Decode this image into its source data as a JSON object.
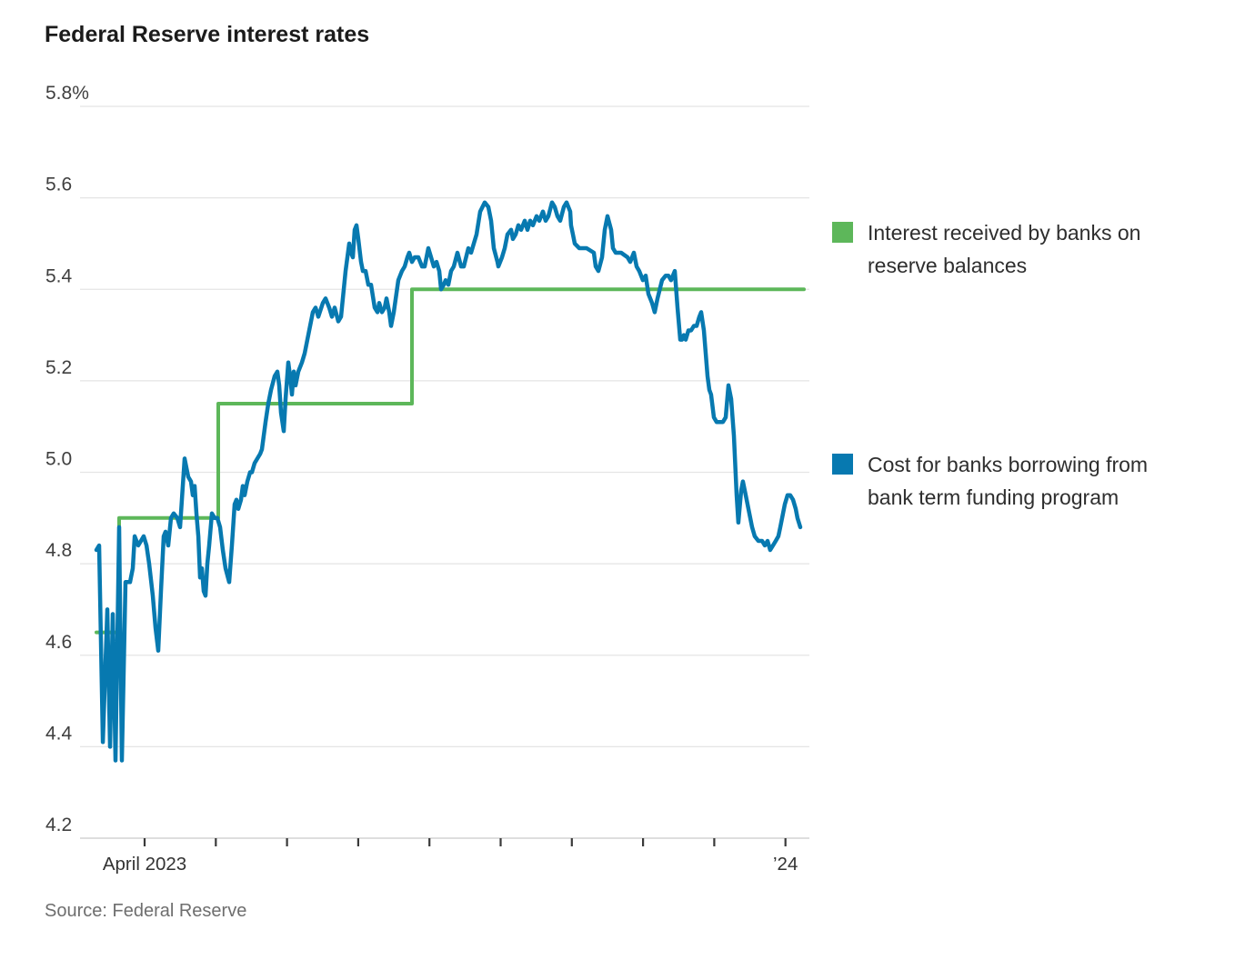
{
  "page": {
    "title": "Federal Reserve interest rates",
    "source": "Source: Federal Reserve"
  },
  "legend": {
    "items": [
      {
        "label": "Interest received by banks on reserve balances",
        "color": "#5db75a"
      },
      {
        "label": "Cost for banks borrowing from bank term funding program",
        "color": "#0779b0"
      }
    ]
  },
  "chart_data": {
    "type": "line",
    "title": "Federal Reserve interest rates",
    "source": "Source: Federal Reserve",
    "x_unit": "months since April 1, 2023 (decimal); series starts mid-March 2023, ends early January 2024",
    "x_axis": {
      "domain_months": [
        -0.907,
        9.336
      ],
      "ticks_months": [
        0,
        1,
        2,
        3,
        4,
        5,
        6,
        7,
        8,
        9
      ],
      "tick_labels": {
        "0": "April 2023",
        "9": "’24"
      },
      "grid": false
    },
    "y_axis": {
      "unit": "percent",
      "domain": [
        4.2,
        5.8
      ],
      "ticks": [
        {
          "v": 5.8,
          "label": "5.8%"
        },
        {
          "v": 5.6,
          "label": "5.6"
        },
        {
          "v": 5.4,
          "label": "5.4"
        },
        {
          "v": 5.2,
          "label": "5.2"
        },
        {
          "v": 5.0,
          "label": "5.0"
        },
        {
          "v": 4.8,
          "label": "4.8"
        },
        {
          "v": 4.6,
          "label": "4.6"
        },
        {
          "v": 4.4,
          "label": "4.4"
        },
        {
          "v": 4.2,
          "label": "4.2"
        }
      ],
      "grid": true
    },
    "legend_position": "right",
    "series": [
      {
        "name": "Interest received by banks on reserve balances",
        "color": "#5db75a",
        "style": "step",
        "points": [
          [
            -0.677,
            4.65
          ],
          [
            -0.358,
            4.65
          ],
          [
            -0.358,
            4.9
          ],
          [
            1.034,
            4.9
          ],
          [
            1.034,
            5.15
          ],
          [
            3.755,
            5.15
          ],
          [
            3.755,
            5.4
          ],
          [
            9.259,
            5.4
          ]
        ]
      },
      {
        "name": "Cost for banks borrowing from bank term funding program",
        "color": "#0779b0",
        "style": "line",
        "points": [
          [
            -0.677,
            4.83
          ],
          [
            -0.639,
            4.84
          ],
          [
            -0.587,
            4.41
          ],
          [
            -0.524,
            4.7
          ],
          [
            -0.485,
            4.4
          ],
          [
            -0.447,
            4.69
          ],
          [
            -0.409,
            4.37
          ],
          [
            -0.358,
            4.88
          ],
          [
            -0.319,
            4.37
          ],
          [
            -0.268,
            4.76
          ],
          [
            -0.204,
            4.76
          ],
          [
            -0.166,
            4.79
          ],
          [
            -0.14,
            4.86
          ],
          [
            -0.089,
            4.84
          ],
          [
            -0.051,
            4.85
          ],
          [
            -0.013,
            4.86
          ],
          [
            0.026,
            4.84
          ],
          [
            0.064,
            4.8
          ],
          [
            0.115,
            4.73
          ],
          [
            0.153,
            4.66
          ],
          [
            0.192,
            4.61
          ],
          [
            0.23,
            4.74
          ],
          [
            0.268,
            4.86
          ],
          [
            0.294,
            4.87
          ],
          [
            0.332,
            4.84
          ],
          [
            0.37,
            4.9
          ],
          [
            0.409,
            4.91
          ],
          [
            0.46,
            4.9
          ],
          [
            0.498,
            4.88
          ],
          [
            0.524,
            4.94
          ],
          [
            0.562,
            5.03
          ],
          [
            0.587,
            5.01
          ],
          [
            0.613,
            4.99
          ],
          [
            0.651,
            4.98
          ],
          [
            0.677,
            4.95
          ],
          [
            0.702,
            4.97
          ],
          [
            0.728,
            4.91
          ],
          [
            0.754,
            4.86
          ],
          [
            0.779,
            4.77
          ],
          [
            0.805,
            4.79
          ],
          [
            0.83,
            4.74
          ],
          [
            0.856,
            4.73
          ],
          [
            0.881,
            4.8
          ],
          [
            0.907,
            4.84
          ],
          [
            0.945,
            4.91
          ],
          [
            0.983,
            4.9
          ],
          [
            1.022,
            4.9
          ],
          [
            1.06,
            4.88
          ],
          [
            1.098,
            4.83
          ],
          [
            1.137,
            4.79
          ],
          [
            1.188,
            4.76
          ],
          [
            1.226,
            4.84
          ],
          [
            1.264,
            4.93
          ],
          [
            1.29,
            4.94
          ],
          [
            1.315,
            4.92
          ],
          [
            1.354,
            4.94
          ],
          [
            1.379,
            4.97
          ],
          [
            1.405,
            4.95
          ],
          [
            1.443,
            4.98
          ],
          [
            1.481,
            5.0
          ],
          [
            1.507,
            5.0
          ],
          [
            1.545,
            5.02
          ],
          [
            1.584,
            5.03
          ],
          [
            1.622,
            5.04
          ],
          [
            1.647,
            5.05
          ],
          [
            1.699,
            5.11
          ],
          [
            1.737,
            5.15
          ],
          [
            1.775,
            5.18
          ],
          [
            1.826,
            5.21
          ],
          [
            1.865,
            5.22
          ],
          [
            1.89,
            5.19
          ],
          [
            1.916,
            5.13
          ],
          [
            1.954,
            5.09
          ],
          [
            1.98,
            5.16
          ],
          [
            2.018,
            5.24
          ],
          [
            2.043,
            5.21
          ],
          [
            2.069,
            5.17
          ],
          [
            2.095,
            5.22
          ],
          [
            2.12,
            5.19
          ],
          [
            2.158,
            5.22
          ],
          [
            2.209,
            5.24
          ],
          [
            2.248,
            5.26
          ],
          [
            2.286,
            5.29
          ],
          [
            2.324,
            5.32
          ],
          [
            2.363,
            5.35
          ],
          [
            2.401,
            5.36
          ],
          [
            2.439,
            5.34
          ],
          [
            2.503,
            5.37
          ],
          [
            2.541,
            5.38
          ],
          [
            2.592,
            5.36
          ],
          [
            2.631,
            5.34
          ],
          [
            2.669,
            5.36
          ],
          [
            2.72,
            5.33
          ],
          [
            2.758,
            5.34
          ],
          [
            2.797,
            5.4
          ],
          [
            2.822,
            5.44
          ],
          [
            2.874,
            5.5
          ],
          [
            2.899,
            5.48
          ],
          [
            2.925,
            5.47
          ],
          [
            2.95,
            5.53
          ],
          [
            2.976,
            5.54
          ],
          [
            3.001,
            5.51
          ],
          [
            3.04,
            5.46
          ],
          [
            3.065,
            5.44
          ],
          [
            3.103,
            5.44
          ],
          [
            3.142,
            5.41
          ],
          [
            3.18,
            5.41
          ],
          [
            3.231,
            5.36
          ],
          [
            3.27,
            5.35
          ],
          [
            3.295,
            5.37
          ],
          [
            3.333,
            5.35
          ],
          [
            3.372,
            5.36
          ],
          [
            3.397,
            5.38
          ],
          [
            3.436,
            5.35
          ],
          [
            3.461,
            5.32
          ],
          [
            3.499,
            5.35
          ],
          [
            3.563,
            5.42
          ],
          [
            3.614,
            5.44
          ],
          [
            3.652,
            5.45
          ],
          [
            3.691,
            5.47
          ],
          [
            3.716,
            5.48
          ],
          [
            3.755,
            5.46
          ],
          [
            3.793,
            5.47
          ],
          [
            3.844,
            5.47
          ],
          [
            3.895,
            5.45
          ],
          [
            3.934,
            5.45
          ],
          [
            3.985,
            5.49
          ],
          [
            4.023,
            5.47
          ],
          [
            4.061,
            5.45
          ],
          [
            4.1,
            5.46
          ],
          [
            4.138,
            5.44
          ],
          [
            4.163,
            5.4
          ],
          [
            4.202,
            5.41
          ],
          [
            4.227,
            5.42
          ],
          [
            4.266,
            5.41
          ],
          [
            4.304,
            5.44
          ],
          [
            4.342,
            5.45
          ],
          [
            4.393,
            5.48
          ],
          [
            4.444,
            5.45
          ],
          [
            4.483,
            5.45
          ],
          [
            4.547,
            5.49
          ],
          [
            4.585,
            5.48
          ],
          [
            4.623,
            5.5
          ],
          [
            4.662,
            5.52
          ],
          [
            4.713,
            5.57
          ],
          [
            4.777,
            5.59
          ],
          [
            4.828,
            5.58
          ],
          [
            4.866,
            5.55
          ],
          [
            4.904,
            5.49
          ],
          [
            4.955,
            5.46
          ],
          [
            4.968,
            5.45
          ],
          [
            5.019,
            5.47
          ],
          [
            5.057,
            5.49
          ],
          [
            5.096,
            5.52
          ],
          [
            5.147,
            5.53
          ],
          [
            5.172,
            5.51
          ],
          [
            5.211,
            5.52
          ],
          [
            5.249,
            5.54
          ],
          [
            5.287,
            5.53
          ],
          [
            5.338,
            5.55
          ],
          [
            5.377,
            5.53
          ],
          [
            5.415,
            5.55
          ],
          [
            5.453,
            5.54
          ],
          [
            5.504,
            5.56
          ],
          [
            5.543,
            5.55
          ],
          [
            5.594,
            5.57
          ],
          [
            5.632,
            5.55
          ],
          [
            5.67,
            5.56
          ],
          [
            5.721,
            5.59
          ],
          [
            5.76,
            5.58
          ],
          [
            5.798,
            5.56
          ],
          [
            5.836,
            5.55
          ],
          [
            5.887,
            5.58
          ],
          [
            5.926,
            5.59
          ],
          [
            5.977,
            5.57
          ],
          [
            5.989,
            5.54
          ],
          [
            6.015,
            5.52
          ],
          [
            6.041,
            5.5
          ],
          [
            6.105,
            5.49
          ],
          [
            6.207,
            5.49
          ],
          [
            6.309,
            5.48
          ],
          [
            6.334,
            5.45
          ],
          [
            6.373,
            5.44
          ],
          [
            6.424,
            5.47
          ],
          [
            6.462,
            5.53
          ],
          [
            6.501,
            5.56
          ],
          [
            6.552,
            5.53
          ],
          [
            6.577,
            5.49
          ],
          [
            6.615,
            5.48
          ],
          [
            6.692,
            5.48
          ],
          [
            6.781,
            5.47
          ],
          [
            6.82,
            5.46
          ],
          [
            6.871,
            5.48
          ],
          [
            6.909,
            5.45
          ],
          [
            6.947,
            5.44
          ],
          [
            6.998,
            5.42
          ],
          [
            7.037,
            5.43
          ],
          [
            7.075,
            5.39
          ],
          [
            7.126,
            5.37
          ],
          [
            7.164,
            5.35
          ],
          [
            7.203,
            5.38
          ],
          [
            7.267,
            5.42
          ],
          [
            7.318,
            5.43
          ],
          [
            7.356,
            5.43
          ],
          [
            7.394,
            5.42
          ],
          [
            7.446,
            5.44
          ],
          [
            7.484,
            5.36
          ],
          [
            7.522,
            5.29
          ],
          [
            7.548,
            5.29
          ],
          [
            7.573,
            5.3
          ],
          [
            7.599,
            5.29
          ],
          [
            7.637,
            5.31
          ],
          [
            7.675,
            5.31
          ],
          [
            7.714,
            5.32
          ],
          [
            7.752,
            5.32
          ],
          [
            7.79,
            5.34
          ],
          [
            7.816,
            5.35
          ],
          [
            7.854,
            5.31
          ],
          [
            7.88,
            5.26
          ],
          [
            7.905,
            5.21
          ],
          [
            7.931,
            5.18
          ],
          [
            7.956,
            5.17
          ],
          [
            7.995,
            5.12
          ],
          [
            8.033,
            5.11
          ],
          [
            8.084,
            5.11
          ],
          [
            8.122,
            5.11
          ],
          [
            8.161,
            5.12
          ],
          [
            8.199,
            5.19
          ],
          [
            8.237,
            5.16
          ],
          [
            8.276,
            5.08
          ],
          [
            8.314,
            4.95
          ],
          [
            8.339,
            4.89
          ],
          [
            8.378,
            4.96
          ],
          [
            8.403,
            4.98
          ],
          [
            8.442,
            4.95
          ],
          [
            8.48,
            4.92
          ],
          [
            8.531,
            4.88
          ],
          [
            8.569,
            4.86
          ],
          [
            8.62,
            4.85
          ],
          [
            8.672,
            4.85
          ],
          [
            8.71,
            4.84
          ],
          [
            8.748,
            4.85
          ],
          [
            8.786,
            4.83
          ],
          [
            8.825,
            4.84
          ],
          [
            8.863,
            4.85
          ],
          [
            8.901,
            4.86
          ],
          [
            8.927,
            4.88
          ],
          [
            8.965,
            4.91
          ],
          [
            8.991,
            4.93
          ],
          [
            9.029,
            4.95
          ],
          [
            9.067,
            4.95
          ],
          [
            9.106,
            4.94
          ],
          [
            9.144,
            4.92
          ],
          [
            9.169,
            4.9
          ],
          [
            9.208,
            4.88
          ]
        ]
      }
    ]
  }
}
